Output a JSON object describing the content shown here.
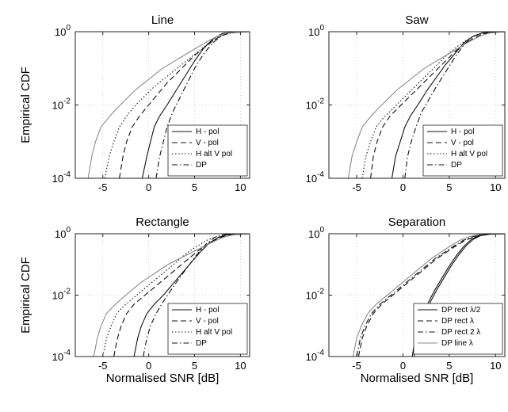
{
  "chart_data": [
    {
      "type": "line",
      "title": "Line",
      "ylabel": "Empirical CDF",
      "xlabel": "",
      "xlim": [
        -8,
        11
      ],
      "ylim_log10": [
        -4,
        0
      ],
      "y_scale": "log",
      "xticks": [
        "-5",
        "0",
        "5",
        "10"
      ],
      "ytick_bases": [
        "10",
        "10",
        "10"
      ],
      "ytick_exps": [
        "-4",
        "-2",
        "0"
      ],
      "grid": true,
      "legend_position": "lower-right",
      "series": [
        {
          "name": "H - pol",
          "dash": "solid",
          "x": [
            -0.7,
            -0.2,
            0.2,
            0.6,
            1.2,
            2,
            3,
            4,
            5,
            6,
            7,
            8,
            9,
            10,
            11
          ],
          "log10y": [
            -4,
            -3.4,
            -3.0,
            -2.6,
            -2.3,
            -2.0,
            -1.6,
            -1.2,
            -0.8,
            -0.45,
            -0.2,
            -0.05,
            -0.01,
            0,
            0
          ]
        },
        {
          "name": "V - pol",
          "dash": "dashed",
          "x": [
            -3.2,
            -2.8,
            -2.4,
            -1.8,
            -1,
            0,
            1,
            2,
            3,
            4,
            5,
            6,
            7,
            8,
            9,
            10,
            11
          ],
          "log10y": [
            -4,
            -3.4,
            -3.0,
            -2.6,
            -2.3,
            -2.0,
            -1.7,
            -1.4,
            -1.15,
            -0.9,
            -0.65,
            -0.45,
            -0.25,
            -0.1,
            -0.03,
            -0.01,
            0
          ]
        },
        {
          "name": "H alt V pol",
          "dash": "dotted",
          "x": [
            -4.8,
            -4.3,
            -3.8,
            -3.2,
            -2.4,
            -1.4,
            -0.4,
            0.6,
            1.6,
            2.6,
            3.6,
            4.6,
            5.6,
            6.6,
            7.6,
            8.6,
            10,
            11
          ],
          "log10y": [
            -4,
            -3.4,
            -3.0,
            -2.6,
            -2.3,
            -2.0,
            -1.75,
            -1.5,
            -1.3,
            -1.1,
            -0.9,
            -0.7,
            -0.5,
            -0.3,
            -0.15,
            -0.05,
            -0.01,
            0
          ]
        },
        {
          "name": "DP",
          "dash": "dashdot",
          "x": [
            0.8,
            1.2,
            1.6,
            2,
            2.6,
            3.2,
            4,
            5,
            6,
            7,
            8,
            9,
            10,
            11
          ],
          "log10y": [
            -4,
            -3.4,
            -3.0,
            -2.6,
            -2.2,
            -1.9,
            -1.5,
            -1.0,
            -0.6,
            -0.3,
            -0.1,
            -0.03,
            -0.01,
            0
          ]
        },
        {
          "name": "",
          "dash": "solid",
          "color": "#8a8a8a",
          "x": [
            -6.6,
            -6.2,
            -5.8,
            -5.2,
            -4.4,
            -3.5,
            -2.5,
            -1.5,
            -0.5,
            0.5,
            1.5,
            2.5,
            3.5,
            4.5,
            5.5,
            6.5,
            7.5,
            8.5,
            10,
            11
          ],
          "log10y": [
            -4,
            -3.4,
            -3.0,
            -2.6,
            -2.35,
            -2.1,
            -1.85,
            -1.6,
            -1.4,
            -1.2,
            -1.0,
            -0.85,
            -0.7,
            -0.55,
            -0.4,
            -0.25,
            -0.12,
            -0.04,
            -0.01,
            0
          ]
        }
      ]
    },
    {
      "type": "line",
      "title": "Saw",
      "ylabel": "",
      "xlabel": "",
      "xlim": [
        -8,
        11
      ],
      "ylim_log10": [
        -4,
        0
      ],
      "y_scale": "log",
      "xticks": [
        "-5",
        "0",
        "5",
        "10"
      ],
      "ytick_bases": [
        "10",
        "10",
        "10"
      ],
      "ytick_exps": [
        "-4",
        "-2",
        "0"
      ],
      "grid": true,
      "legend_position": "lower-right",
      "series": [
        {
          "name": "H - pol",
          "dash": "solid",
          "x": [
            -1.2,
            -0.8,
            -0.3,
            0.2,
            0.8,
            1.6,
            2.6,
            3.6,
            4.6,
            5.6,
            6.6,
            7.6,
            8.6,
            10,
            11
          ],
          "log10y": [
            -4,
            -3.4,
            -3.0,
            -2.6,
            -2.3,
            -2.0,
            -1.6,
            -1.25,
            -0.9,
            -0.6,
            -0.3,
            -0.12,
            -0.03,
            -0.01,
            0
          ]
        },
        {
          "name": "V - pol",
          "dash": "dashed",
          "x": [
            -3.5,
            -3.2,
            -2.8,
            -2.2,
            -1.4,
            -0.4,
            0.6,
            1.6,
            2.6,
            3.6,
            4.6,
            5.6,
            6.6,
            7.6,
            8.6,
            10,
            11
          ],
          "log10y": [
            -4,
            -3.4,
            -3.0,
            -2.6,
            -2.3,
            -2.05,
            -1.8,
            -1.55,
            -1.3,
            -1.05,
            -0.8,
            -0.55,
            -0.35,
            -0.18,
            -0.06,
            -0.02,
            0
          ]
        },
        {
          "name": "H alt V pol",
          "dash": "dotted",
          "x": [
            -4.4,
            -4.0,
            -3.5,
            -2.9,
            -2.1,
            -1.1,
            -0.1,
            0.9,
            1.9,
            2.9,
            3.9,
            4.9,
            5.9,
            6.9,
            7.9,
            8.9,
            10,
            11
          ],
          "log10y": [
            -4,
            -3.4,
            -3.0,
            -2.6,
            -2.35,
            -2.1,
            -1.85,
            -1.6,
            -1.35,
            -1.1,
            -0.85,
            -0.6,
            -0.4,
            -0.22,
            -0.1,
            -0.03,
            -0.01,
            0
          ]
        },
        {
          "name": "DP",
          "dash": "dashdot",
          "x": [
            0.2,
            0.5,
            0.9,
            1.4,
            2.0,
            2.8,
            3.6,
            4.6,
            5.6,
            6.6,
            7.6,
            8.6,
            10,
            11
          ],
          "log10y": [
            -4,
            -3.4,
            -3.0,
            -2.6,
            -2.2,
            -1.85,
            -1.5,
            -1.1,
            -0.7,
            -0.35,
            -0.12,
            -0.03,
            -0.01,
            0
          ]
        },
        {
          "name": "",
          "dash": "solid",
          "color": "#8a8a8a",
          "x": [
            -5.9,
            -5.5,
            -5.0,
            -4.4,
            -3.6,
            -2.7,
            -1.7,
            -0.7,
            0.3,
            1.3,
            2.3,
            3.3,
            4.3,
            5.3,
            6.3,
            7.3,
            8.3,
            9.3,
            10.5,
            11
          ],
          "log10y": [
            -4,
            -3.4,
            -3.0,
            -2.6,
            -2.35,
            -2.1,
            -1.85,
            -1.6,
            -1.4,
            -1.2,
            -1.0,
            -0.85,
            -0.7,
            -0.55,
            -0.4,
            -0.25,
            -0.12,
            -0.04,
            -0.01,
            0
          ]
        }
      ]
    },
    {
      "type": "line",
      "title": "Rectangle",
      "ylabel": "Empirical CDF",
      "xlabel": "Normalised SNR [dB]",
      "xlim": [
        -8,
        11
      ],
      "ylim_log10": [
        -4,
        0
      ],
      "y_scale": "log",
      "xticks": [
        "-5",
        "0",
        "5",
        "10"
      ],
      "ytick_bases": [
        "10",
        "10",
        "10"
      ],
      "ytick_exps": [
        "-4",
        "-2",
        "0"
      ],
      "grid": true,
      "legend_position": "lower-right",
      "series": [
        {
          "name": "H - pol",
          "dash": "solid",
          "x": [
            -1.6,
            -1.2,
            -0.8,
            -0.2,
            0.6,
            1.6,
            2.6,
            3.6,
            4.6,
            5.6,
            6.6,
            7.6,
            8.6,
            10,
            11
          ],
          "log10y": [
            -4,
            -3.4,
            -3.0,
            -2.6,
            -2.3,
            -2.0,
            -1.65,
            -1.3,
            -0.95,
            -0.6,
            -0.3,
            -0.12,
            -0.03,
            -0.01,
            0
          ]
        },
        {
          "name": "V - pol",
          "dash": "dashed",
          "x": [
            -3.8,
            -3.4,
            -3.0,
            -2.4,
            -1.6,
            -0.6,
            0.4,
            1.4,
            2.4,
            3.4,
            4.4,
            5.4,
            6.4,
            7.4,
            8.4,
            10,
            11
          ],
          "log10y": [
            -4,
            -3.4,
            -3.0,
            -2.6,
            -2.3,
            -2.05,
            -1.8,
            -1.55,
            -1.3,
            -1.05,
            -0.8,
            -0.55,
            -0.35,
            -0.18,
            -0.06,
            -0.02,
            0
          ]
        },
        {
          "name": "H alt V pol",
          "dash": "dotted",
          "x": [
            -5.0,
            -4.6,
            -4.1,
            -3.5,
            -2.7,
            -1.7,
            -0.7,
            0.3,
            1.3,
            2.3,
            3.3,
            4.3,
            5.3,
            6.3,
            7.3,
            8.3,
            10,
            11
          ],
          "log10y": [
            -4,
            -3.4,
            -3.0,
            -2.6,
            -2.35,
            -2.1,
            -1.85,
            -1.6,
            -1.35,
            -1.1,
            -0.85,
            -0.6,
            -0.4,
            -0.22,
            -0.1,
            -0.03,
            -0.01,
            0
          ]
        },
        {
          "name": "DP",
          "dash": "dashdot",
          "x": [
            -0.6,
            -0.2,
            0.2,
            0.8,
            1.6,
            2.4,
            3.2,
            4.2,
            5.2,
            6.2,
            7.2,
            8.2,
            9.5,
            11
          ],
          "log10y": [
            -4,
            -3.4,
            -3.0,
            -2.6,
            -2.2,
            -1.85,
            -1.5,
            -1.1,
            -0.7,
            -0.35,
            -0.12,
            -0.03,
            -0.01,
            0
          ]
        },
        {
          "name": "",
          "dash": "solid",
          "color": "#8a8a8a",
          "x": [
            -6.0,
            -5.6,
            -5.2,
            -4.6,
            -3.8,
            -2.9,
            -1.9,
            -0.9,
            0.1,
            1.1,
            2.1,
            3.1,
            4.1,
            5.1,
            6.1,
            7.1,
            8.1,
            9.1,
            10.4,
            11
          ],
          "log10y": [
            -4,
            -3.4,
            -3.0,
            -2.6,
            -2.35,
            -2.1,
            -1.85,
            -1.6,
            -1.4,
            -1.2,
            -1.0,
            -0.85,
            -0.7,
            -0.55,
            -0.4,
            -0.25,
            -0.12,
            -0.04,
            -0.01,
            0
          ]
        }
      ]
    },
    {
      "type": "line",
      "title": "Separation",
      "ylabel": "",
      "xlabel": "Normalised SNR [dB]",
      "xlim": [
        -8,
        11
      ],
      "ylim_log10": [
        -4,
        0
      ],
      "y_scale": "log",
      "xticks": [
        "-5",
        "0",
        "5",
        "10"
      ],
      "ytick_bases": [
        "10",
        "10",
        "10"
      ],
      "ytick_exps": [
        "-4",
        "-2",
        "0"
      ],
      "grid": true,
      "legend_position": "lower-right",
      "series": [
        {
          "name": "DP rect  λ/2",
          "dash": "solid",
          "x": [
            1.2,
            1.5,
            1.9,
            2.4,
            3.0,
            3.7,
            4.4,
            5.2,
            6.0,
            6.8,
            7.6,
            8.4,
            9.5,
            11
          ],
          "log10y": [
            -4,
            -3.4,
            -3.0,
            -2.6,
            -2.2,
            -1.8,
            -1.45,
            -1.05,
            -0.7,
            -0.4,
            -0.18,
            -0.06,
            -0.01,
            0
          ]
        },
        {
          "name": "DP rect  λ",
          "dash": "dashed",
          "x": [
            -4.8,
            -4.4,
            -3.9,
            -3.2,
            -2.3,
            -1.3,
            -0.3,
            0.7,
            1.7,
            2.7,
            3.7,
            4.7,
            5.7,
            6.7,
            7.7,
            8.7,
            10,
            11
          ],
          "log10y": [
            -4,
            -3.4,
            -3.0,
            -2.6,
            -2.3,
            -2.05,
            -1.8,
            -1.55,
            -1.3,
            -1.05,
            -0.8,
            -0.6,
            -0.4,
            -0.22,
            -0.1,
            -0.03,
            -0.01,
            0
          ]
        },
        {
          "name": "DP rect 2  λ",
          "dash": "dashdot",
          "x": [
            -5.0,
            -4.6,
            -4.1,
            -3.4,
            -2.5,
            -1.5,
            -0.5,
            0.5,
            1.5,
            2.5,
            3.5,
            4.5,
            5.5,
            6.5,
            7.5,
            8.5,
            10,
            11
          ],
          "log10y": [
            -4,
            -3.4,
            -3.0,
            -2.6,
            -2.3,
            -2.05,
            -1.8,
            -1.55,
            -1.3,
            -1.05,
            -0.8,
            -0.6,
            -0.4,
            -0.22,
            -0.1,
            -0.03,
            -0.01,
            0
          ]
        },
        {
          "name": "DP line  λ",
          "dash": "solid",
          "color": "#8a8a8a",
          "x": [
            -5.4,
            -5.0,
            -4.5,
            -3.8,
            -2.9,
            -1.9,
            -0.9,
            0.1,
            1.1,
            2.1,
            3.1,
            4.1,
            5.1,
            6.1,
            7.1,
            8.1,
            9.5,
            11
          ],
          "log10y": [
            -4,
            -3.4,
            -3.0,
            -2.6,
            -2.3,
            -2.05,
            -1.8,
            -1.55,
            -1.3,
            -1.05,
            -0.8,
            -0.6,
            -0.4,
            -0.22,
            -0.1,
            -0.03,
            -0.01,
            0
          ]
        },
        {
          "name": "",
          "dash": "solid",
          "x": [
            1.0,
            1.3,
            1.7,
            2.2,
            2.8,
            3.5,
            4.2,
            5.0,
            5.8,
            6.6,
            7.4,
            8.2,
            9.3,
            11
          ],
          "log10y": [
            -4,
            -3.4,
            -3.0,
            -2.6,
            -2.2,
            -1.8,
            -1.45,
            -1.05,
            -0.7,
            -0.4,
            -0.18,
            -0.06,
            -0.01,
            0
          ]
        }
      ]
    }
  ]
}
